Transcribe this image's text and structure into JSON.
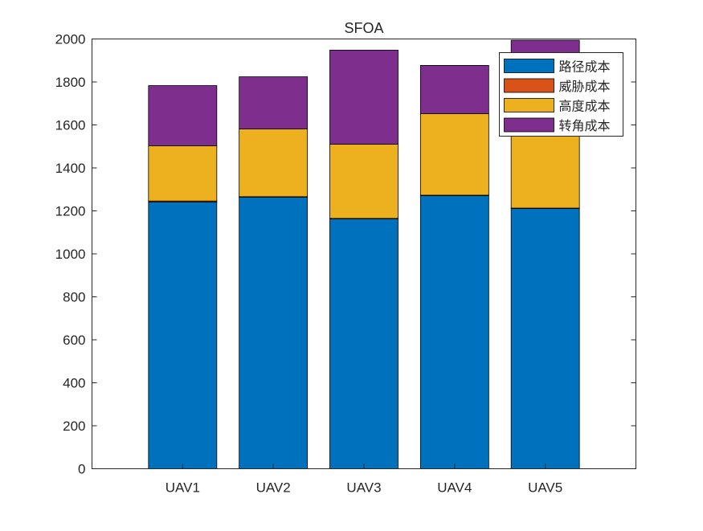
{
  "chart_data": {
    "type": "bar",
    "stacked": true,
    "title": "SFOA",
    "xlabel": "",
    "ylabel": "",
    "ylim": [
      0,
      2000
    ],
    "yticks": [
      0,
      200,
      400,
      600,
      800,
      1000,
      1200,
      1400,
      1600,
      1800,
      2000
    ],
    "categories": [
      "UAV1",
      "UAV2",
      "UAV3",
      "UAV4",
      "UAV5"
    ],
    "series": [
      {
        "name": "路径成本",
        "color": "#0072BD",
        "values": [
          1241,
          1264,
          1163,
          1271,
          1211
        ]
      },
      {
        "name": "威胁成本",
        "color": "#D95319",
        "values": [
          5,
          2,
          2,
          2,
          2
        ]
      },
      {
        "name": "高度成本",
        "color": "#EDB120",
        "values": [
          257,
          315,
          345,
          379,
          430
        ]
      },
      {
        "name": "转角成本",
        "color": "#7E2F8E",
        "values": [
          280,
          243,
          438,
          225,
          351
        ]
      }
    ],
    "grid": false,
    "legend": "top-right"
  }
}
